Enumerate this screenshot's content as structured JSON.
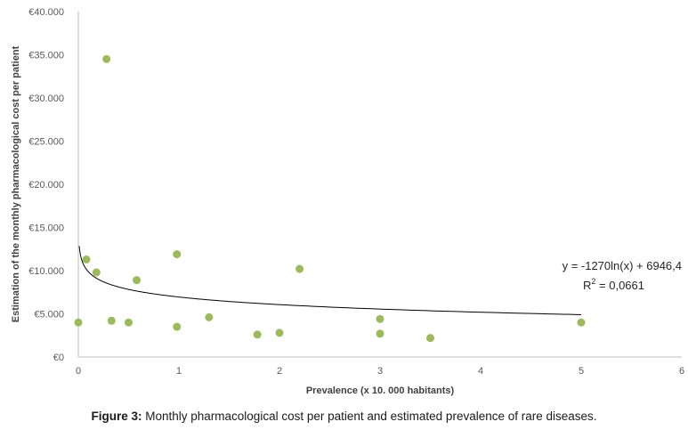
{
  "caption": {
    "label": "Figure 3:",
    "text": "Monthly pharmacological cost per patient and estimated prevalence of rare diseases."
  },
  "chart_data": {
    "type": "scatter",
    "xlabel": "Prevalence (x 10. 000 habitants)",
    "ylabel": "Estimation of the monthly pharmacological cost per patient",
    "xlim": [
      0,
      6
    ],
    "ylim": [
      0,
      40000
    ],
    "x_ticks": [
      "0",
      "1",
      "2",
      "3",
      "4",
      "5",
      "6"
    ],
    "y_ticks": [
      "€0",
      "€5.000",
      "€10.000",
      "€15.000",
      "€20.000",
      "€25.000",
      "€30.000",
      "€35.000",
      "€40.000"
    ],
    "grid": false,
    "legend": "none",
    "colors": {
      "points": "#9bbb59",
      "trendline": "#000000"
    },
    "points": [
      {
        "x": 0.0,
        "y": 4000
      },
      {
        "x": 0.08,
        "y": 11300
      },
      {
        "x": 0.18,
        "y": 9800
      },
      {
        "x": 0.28,
        "y": 34500
      },
      {
        "x": 0.33,
        "y": 4200
      },
      {
        "x": 0.5,
        "y": 4000
      },
      {
        "x": 0.58,
        "y": 8900
      },
      {
        "x": 0.98,
        "y": 3500
      },
      {
        "x": 0.98,
        "y": 11900
      },
      {
        "x": 1.3,
        "y": 4600
      },
      {
        "x": 1.78,
        "y": 2600
      },
      {
        "x": 2.0,
        "y": 2800
      },
      {
        "x": 2.2,
        "y": 10200
      },
      {
        "x": 3.0,
        "y": 4400
      },
      {
        "x": 3.0,
        "y": 2700
      },
      {
        "x": 3.5,
        "y": 2200
      },
      {
        "x": 5.0,
        "y": 4000
      }
    ],
    "trendline": {
      "type": "logarithmic",
      "a": -1270,
      "b": 6946.4,
      "x_range": [
        0.005,
        5.0
      ],
      "equation": "y = -1270ln(x) + 6946,4",
      "r2_prefix": "R",
      "r2_sup": "2",
      "r2_value": " = 0,0661"
    }
  }
}
